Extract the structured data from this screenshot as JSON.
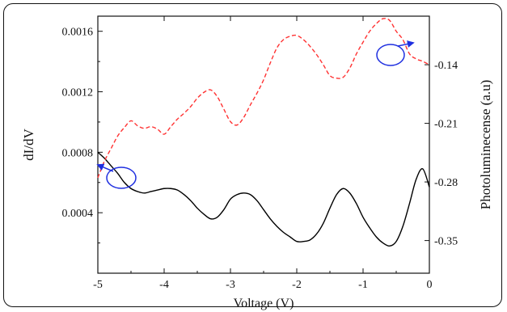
{
  "chart_data": {
    "type": "line",
    "xlabel": "Voltage (V)",
    "ylabel_left": "dI/dV",
    "ylabel_right": "Photoluminecense (a.u)",
    "xlim": [
      -5,
      0
    ],
    "ylim_left": [
      0,
      0.0017
    ],
    "ylim_right": [
      -0.389,
      -0.082
    ],
    "x_ticks": [
      -5,
      -4,
      -3,
      -2,
      -1,
      0
    ],
    "x_tick_labels": [
      "-5",
      "-4",
      "-3",
      "-2",
      "-1",
      "0"
    ],
    "y_left_ticks": [
      0.0004,
      0.0008,
      0.0012,
      0.0016
    ],
    "y_left_tick_labels": [
      "0.0004",
      "0.0008",
      "0.0012",
      "0.0016"
    ],
    "y_right_ticks": [
      -0.35,
      -0.28,
      -0.21,
      -0.14
    ],
    "y_right_tick_labels": [
      "-0.35",
      "-0.28",
      "-0.21",
      "-0.14"
    ],
    "grid": false,
    "series": [
      {
        "axis": "left",
        "color": "#000000",
        "style": "solid",
        "x": [
          -5.0,
          -4.9,
          -4.8,
          -4.7,
          -4.6,
          -4.5,
          -4.4,
          -4.3,
          -4.2,
          -4.1,
          -4.0,
          -3.9,
          -3.8,
          -3.7,
          -3.6,
          -3.5,
          -3.4,
          -3.3,
          -3.2,
          -3.1,
          -3.0,
          -2.9,
          -2.8,
          -2.7,
          -2.6,
          -2.5,
          -2.4,
          -2.3,
          -2.2,
          -2.1,
          -2.0,
          -1.9,
          -1.8,
          -1.7,
          -1.6,
          -1.5,
          -1.4,
          -1.3,
          -1.2,
          -1.1,
          -1.0,
          -0.9,
          -0.8,
          -0.7,
          -0.6,
          -0.5,
          -0.4,
          -0.3,
          -0.2,
          -0.1,
          0.0
        ],
        "values": [
          0.0008,
          0.00076,
          0.00071,
          0.00066,
          0.0006,
          0.00056,
          0.00054,
          0.00053,
          0.00054,
          0.00055,
          0.00056,
          0.00056,
          0.00055,
          0.00052,
          0.00048,
          0.00043,
          0.00039,
          0.00036,
          0.00037,
          0.00042,
          0.00049,
          0.00052,
          0.00053,
          0.00052,
          0.00048,
          0.00042,
          0.00036,
          0.00031,
          0.00027,
          0.00024,
          0.00021,
          0.00021,
          0.00022,
          0.00026,
          0.00033,
          0.00043,
          0.00052,
          0.00056,
          0.00053,
          0.00046,
          0.00037,
          0.0003,
          0.00024,
          0.0002,
          0.00018,
          0.00021,
          0.00031,
          0.00046,
          0.00062,
          0.00069,
          0.00057
        ]
      },
      {
        "axis": "right",
        "color": "#ff3333",
        "style": "dashed",
        "x": [
          -5.0,
          -4.9,
          -4.8,
          -4.7,
          -4.6,
          -4.5,
          -4.4,
          -4.3,
          -4.2,
          -4.1,
          -4.0,
          -3.9,
          -3.8,
          -3.7,
          -3.6,
          -3.5,
          -3.4,
          -3.3,
          -3.2,
          -3.1,
          -3.0,
          -2.9,
          -2.8,
          -2.7,
          -2.6,
          -2.5,
          -2.4,
          -2.3,
          -2.2,
          -2.1,
          -2.0,
          -1.9,
          -1.8,
          -1.7,
          -1.6,
          -1.5,
          -1.4,
          -1.3,
          -1.2,
          -1.1,
          -1.0,
          -0.9,
          -0.8,
          -0.7,
          -0.6,
          -0.5,
          -0.4,
          -0.3,
          -0.2,
          -0.1,
          0.0
        ],
        "values": [
          -0.275,
          -0.255,
          -0.24,
          -0.225,
          -0.215,
          -0.207,
          -0.213,
          -0.216,
          -0.214,
          -0.217,
          -0.223,
          -0.214,
          -0.205,
          -0.198,
          -0.19,
          -0.18,
          -0.173,
          -0.17,
          -0.178,
          -0.193,
          -0.208,
          -0.212,
          -0.203,
          -0.188,
          -0.174,
          -0.158,
          -0.138,
          -0.12,
          -0.11,
          -0.106,
          -0.105,
          -0.11,
          -0.118,
          -0.128,
          -0.14,
          -0.153,
          -0.156,
          -0.155,
          -0.144,
          -0.127,
          -0.113,
          -0.1,
          -0.091,
          -0.085,
          -0.087,
          -0.1,
          -0.11,
          -0.127,
          -0.133,
          -0.136,
          -0.14
        ]
      }
    ]
  }
}
